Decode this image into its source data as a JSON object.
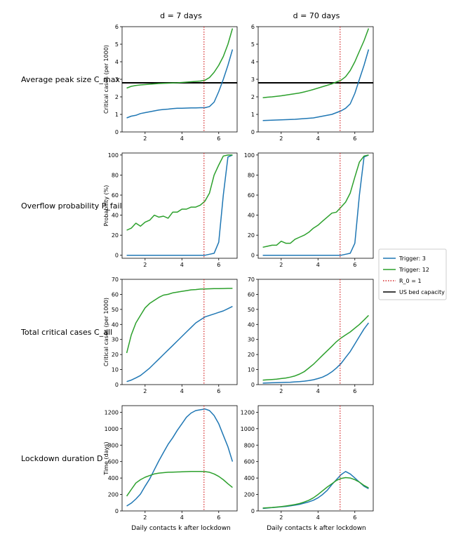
{
  "chart_data": {
    "type": "line",
    "layout": "4x2 grid of line subplots",
    "col_titles": [
      "d = 7 days",
      "d = 70 days"
    ],
    "row_labels": [
      "Average peak size C_max",
      "Overflow probability P_fail",
      "Total critical cases C_all",
      "Lockdown duration D"
    ],
    "ylabels": [
      "Critical cases (per 1000)",
      "Probability (%)",
      "Critical cases (per 1000)",
      "Time (days)"
    ],
    "xlabel": "Daily contacts k after lockdown",
    "xlim": [
      0.75,
      7.0
    ],
    "xticks": [
      2,
      4,
      6
    ],
    "rows": [
      {
        "ylim": [
          0,
          6
        ],
        "yticks": [
          0,
          1,
          2,
          3,
          4,
          5,
          6
        ]
      },
      {
        "ylim": [
          -3,
          102
        ],
        "yticks": [
          0,
          20,
          40,
          60,
          80,
          100
        ]
      },
      {
        "ylim": [
          0,
          70
        ],
        "yticks": [
          0,
          10,
          20,
          30,
          40,
          50,
          60,
          70
        ]
      },
      {
        "ylim": [
          0,
          1280
        ],
        "yticks": [
          0,
          200,
          400,
          600,
          800,
          1000,
          1200
        ]
      }
    ],
    "legend": {
      "position": "right",
      "entries": [
        {
          "label": "Trigger: 3",
          "color": "#1f77b4",
          "style": "solid"
        },
        {
          "label": "Trigger: 12",
          "color": "#2ca02c",
          "style": "solid"
        },
        {
          "label": "R_0 = 1",
          "color": "#d62728",
          "style": "dotted"
        },
        {
          "label": "US bed capacity",
          "color": "#000000",
          "style": "solid"
        }
      ]
    },
    "reference_lines": {
      "vertical_R0": 5.2,
      "us_bed_capacity": 2.8
    },
    "x": [
      1.0,
      1.25,
      1.5,
      1.75,
      2.0,
      2.25,
      2.5,
      2.75,
      3.0,
      3.25,
      3.5,
      3.75,
      4.0,
      4.25,
      4.5,
      4.75,
      5.0,
      5.25,
      5.5,
      5.75,
      6.0,
      6.25,
      6.5,
      6.75
    ],
    "panels": [
      {
        "row": 0,
        "col": 0,
        "series": [
          {
            "name": "Trigger: 3",
            "values": [
              0.8,
              0.9,
              0.95,
              1.05,
              1.1,
              1.15,
              1.2,
              1.25,
              1.28,
              1.3,
              1.33,
              1.35,
              1.35,
              1.36,
              1.37,
              1.37,
              1.38,
              1.38,
              1.45,
              1.7,
              2.3,
              3.0,
              3.8,
              4.7
            ]
          },
          {
            "name": "Trigger: 12",
            "values": [
              2.5,
              2.6,
              2.65,
              2.68,
              2.7,
              2.72,
              2.74,
              2.76,
              2.77,
              2.78,
              2.79,
              2.8,
              2.82,
              2.84,
              2.86,
              2.88,
              2.9,
              2.95,
              3.1,
              3.4,
              3.8,
              4.3,
              5.0,
              5.9
            ]
          }
        ]
      },
      {
        "row": 0,
        "col": 1,
        "series": [
          {
            "name": "Trigger: 3",
            "values": [
              0.65,
              0.66,
              0.67,
              0.68,
              0.69,
              0.7,
              0.71,
              0.72,
              0.74,
              0.76,
              0.78,
              0.8,
              0.85,
              0.9,
              0.95,
              1.0,
              1.1,
              1.2,
              1.35,
              1.6,
              2.2,
              3.0,
              3.8,
              4.7
            ]
          },
          {
            "name": "Trigger: 12",
            "values": [
              1.95,
              1.98,
              2.0,
              2.03,
              2.06,
              2.1,
              2.14,
              2.18,
              2.22,
              2.28,
              2.35,
              2.42,
              2.5,
              2.58,
              2.66,
              2.74,
              2.85,
              2.95,
              3.15,
              3.5,
              4.0,
              4.6,
              5.2,
              5.9
            ]
          }
        ]
      },
      {
        "row": 1,
        "col": 0,
        "series": [
          {
            "name": "Trigger: 3",
            "values": [
              0,
              0,
              0,
              0,
              0,
              0,
              0,
              0,
              0,
              0,
              0,
              0,
              0,
              0,
              0,
              0,
              0,
              0,
              1,
              2,
              13,
              60,
              98,
              100
            ]
          },
          {
            "name": "Trigger: 12",
            "values": [
              25,
              27,
              32,
              29,
              33,
              35,
              40,
              38,
              39,
              37,
              43,
              43,
              46,
              46,
              48,
              48,
              50,
              54,
              62,
              80,
              90,
              99,
              100,
              100
            ]
          }
        ]
      },
      {
        "row": 1,
        "col": 1,
        "series": [
          {
            "name": "Trigger: 3",
            "values": [
              0,
              0,
              0,
              0,
              0,
              0,
              0,
              0,
              0,
              0,
              0,
              0,
              0,
              0,
              0,
              0,
              0,
              0,
              1,
              2,
              12,
              60,
              98,
              100
            ]
          },
          {
            "name": "Trigger: 12",
            "values": [
              8,
              9,
              10,
              10,
              14,
              12,
              12,
              16,
              18,
              20,
              23,
              27,
              30,
              34,
              38,
              42,
              43,
              48,
              53,
              62,
              78,
              93,
              99,
              100
            ]
          }
        ]
      },
      {
        "row": 2,
        "col": 0,
        "series": [
          {
            "name": "Trigger: 3",
            "values": [
              2,
              3,
              4.5,
              6,
              8.5,
              11,
              14,
              17,
              20,
              23,
              26,
              29,
              32,
              35,
              38,
              41,
              43,
              45,
              46,
              47,
              48,
              49,
              50.5,
              52
            ]
          },
          {
            "name": "Trigger: 12",
            "values": [
              21,
              33,
              41,
              46,
              51,
              54,
              56,
              58,
              59.5,
              60,
              61,
              61.5,
              62,
              62.5,
              63,
              63.2,
              63.5,
              63.6,
              63.7,
              63.8,
              63.8,
              63.9,
              64,
              64
            ]
          }
        ]
      },
      {
        "row": 2,
        "col": 1,
        "series": [
          {
            "name": "Trigger: 3",
            "values": [
              1,
              1.1,
              1.2,
              1.3,
              1.4,
              1.5,
              1.6,
              1.8,
              2,
              2.3,
              2.7,
              3.2,
              4,
              5,
              6.5,
              8.5,
              11,
              14,
              18,
              22,
              27,
              32,
              37,
              41
            ]
          },
          {
            "name": "Trigger: 12",
            "values": [
              3,
              3.2,
              3.4,
              3.6,
              4,
              4.4,
              5,
              5.8,
              7,
              8.6,
              11,
              13.5,
              16.5,
              19.5,
              22.5,
              25.5,
              28.5,
              31,
              33,
              35,
              37.5,
              40,
              43,
              46
            ]
          }
        ]
      },
      {
        "row": 3,
        "col": 0,
        "series": [
          {
            "name": "Trigger: 3",
            "values": [
              60,
              95,
              145,
              205,
              300,
              390,
              500,
              610,
              710,
              810,
              890,
              980,
              1060,
              1140,
              1190,
              1220,
              1230,
              1240,
              1220,
              1160,
              1060,
              920,
              780,
              600
            ]
          },
          {
            "name": "Trigger: 12",
            "values": [
              180,
              260,
              340,
              380,
              410,
              430,
              450,
              460,
              465,
              470,
              472,
              474,
              476,
              478,
              480,
              480,
              480,
              478,
              470,
              450,
              420,
              380,
              330,
              285
            ]
          }
        ]
      },
      {
        "row": 3,
        "col": 1,
        "series": [
          {
            "name": "Trigger: 3",
            "values": [
              30,
              35,
              40,
              45,
              50,
              55,
              62,
              70,
              80,
              95,
              110,
              130,
              160,
              200,
              250,
              320,
              380,
              440,
              480,
              450,
              400,
              350,
              300,
              270
            ]
          },
          {
            "name": "Trigger: 12",
            "values": [
              35,
              38,
              42,
              47,
              52,
              60,
              68,
              78,
              90,
              108,
              130,
              160,
              200,
              245,
              290,
              330,
              370,
              395,
              405,
              400,
              380,
              350,
              310,
              280
            ]
          }
        ]
      }
    ]
  }
}
